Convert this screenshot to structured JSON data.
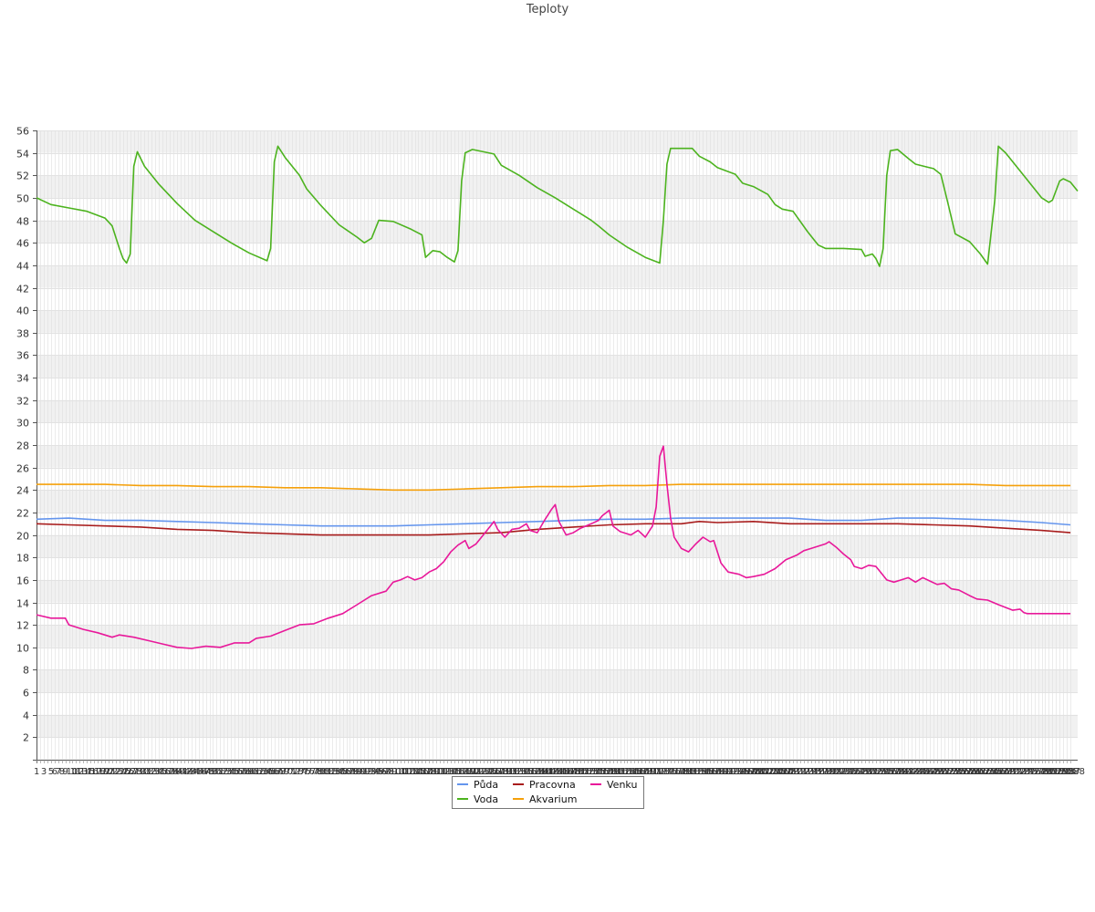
{
  "chart_data": {
    "type": "line",
    "title": "Teploty",
    "xlabel": "",
    "ylabel": "",
    "ylim": [
      0,
      56
    ],
    "yticks": [
      2,
      4,
      6,
      8,
      10,
      12,
      14,
      16,
      18,
      20,
      22,
      24,
      26,
      28,
      30,
      32,
      34,
      36,
      38,
      40,
      42,
      44,
      46,
      48,
      50,
      52,
      54,
      56
    ],
    "x_first_labels": [
      "1",
      "3",
      "5",
      "6",
      "7",
      "8",
      "9",
      "10",
      "11"
    ],
    "x_last_label": "288",
    "x_last_index": 288,
    "grid": true,
    "legend_position": "bottom-center",
    "series": [
      {
        "name": "Půda",
        "color": "#6495ED",
        "points": [
          [
            1,
            21.4
          ],
          [
            10,
            21.5
          ],
          [
            20,
            21.3
          ],
          [
            30,
            21.3
          ],
          [
            40,
            21.2
          ],
          [
            50,
            21.1
          ],
          [
            60,
            21.0
          ],
          [
            70,
            20.9
          ],
          [
            80,
            20.8
          ],
          [
            90,
            20.8
          ],
          [
            100,
            20.8
          ],
          [
            110,
            20.9
          ],
          [
            120,
            21.0
          ],
          [
            130,
            21.1
          ],
          [
            140,
            21.2
          ],
          [
            150,
            21.3
          ],
          [
            160,
            21.4
          ],
          [
            170,
            21.4
          ],
          [
            180,
            21.5
          ],
          [
            190,
            21.5
          ],
          [
            200,
            21.5
          ],
          [
            210,
            21.5
          ],
          [
            220,
            21.3
          ],
          [
            230,
            21.3
          ],
          [
            240,
            21.5
          ],
          [
            250,
            21.5
          ],
          [
            260,
            21.4
          ],
          [
            270,
            21.3
          ],
          [
            280,
            21.1
          ],
          [
            288,
            20.9
          ]
        ]
      },
      {
        "name": "Voda",
        "color": "#4CB31E",
        "points": [
          [
            1,
            50.0
          ],
          [
            5,
            49.4
          ],
          [
            10,
            49.1
          ],
          [
            15,
            48.8
          ],
          [
            20,
            48.2
          ],
          [
            22,
            47.5
          ],
          [
            24,
            45.5
          ],
          [
            25,
            44.6
          ],
          [
            26,
            44.2
          ],
          [
            27,
            45.0
          ],
          [
            28,
            52.8
          ],
          [
            29,
            54.1
          ],
          [
            31,
            52.8
          ],
          [
            35,
            51.2
          ],
          [
            40,
            49.5
          ],
          [
            45,
            48.0
          ],
          [
            50,
            47.0
          ],
          [
            55,
            46.0
          ],
          [
            60,
            45.1
          ],
          [
            65,
            44.4
          ],
          [
            66,
            45.5
          ],
          [
            67,
            53.2
          ],
          [
            68,
            54.6
          ],
          [
            70,
            53.6
          ],
          [
            74,
            52.0
          ],
          [
            76,
            50.8
          ],
          [
            80,
            49.3
          ],
          [
            85,
            47.6
          ],
          [
            90,
            46.5
          ],
          [
            92,
            46.0
          ],
          [
            94,
            46.4
          ],
          [
            96,
            48.0
          ],
          [
            100,
            47.9
          ],
          [
            105,
            47.2
          ],
          [
            108,
            46.7
          ],
          [
            109,
            44.7
          ],
          [
            111,
            45.3
          ],
          [
            113,
            45.2
          ],
          [
            115,
            44.7
          ],
          [
            117,
            44.3
          ],
          [
            118,
            45.3
          ],
          [
            119,
            51.5
          ],
          [
            120,
            54.0
          ],
          [
            122,
            54.3
          ],
          [
            125,
            54.1
          ],
          [
            128,
            53.9
          ],
          [
            130,
            52.9
          ],
          [
            135,
            52.0
          ],
          [
            140,
            50.9
          ],
          [
            145,
            50.0
          ],
          [
            150,
            49.0
          ],
          [
            155,
            48.0
          ],
          [
            157,
            47.5
          ],
          [
            160,
            46.7
          ],
          [
            165,
            45.6
          ],
          [
            170,
            44.7
          ],
          [
            174,
            44.2
          ],
          [
            175,
            48.0
          ],
          [
            176,
            53.0
          ],
          [
            177,
            54.4
          ],
          [
            183,
            54.4
          ],
          [
            185,
            53.7
          ],
          [
            188,
            53.2
          ],
          [
            190,
            52.7
          ],
          [
            195,
            52.1
          ],
          [
            197,
            51.3
          ],
          [
            200,
            51.0
          ],
          [
            204,
            50.3
          ],
          [
            206,
            49.4
          ],
          [
            208,
            49.0
          ],
          [
            211,
            48.8
          ],
          [
            215,
            47.0
          ],
          [
            218,
            45.8
          ],
          [
            220,
            45.5
          ],
          [
            225,
            45.5
          ],
          [
            230,
            45.4
          ],
          [
            231,
            44.8
          ],
          [
            233,
            45.0
          ],
          [
            234,
            44.6
          ],
          [
            235,
            43.9
          ],
          [
            236,
            45.5
          ],
          [
            237,
            52.0
          ],
          [
            238,
            54.2
          ],
          [
            240,
            54.3
          ],
          [
            243,
            53.5
          ],
          [
            245,
            53.0
          ],
          [
            250,
            52.6
          ],
          [
            252,
            52.1
          ],
          [
            254,
            49.5
          ],
          [
            256,
            46.8
          ],
          [
            260,
            46.1
          ],
          [
            263,
            45.0
          ],
          [
            265,
            44.1
          ],
          [
            267,
            49.8
          ],
          [
            268,
            54.6
          ],
          [
            270,
            54.0
          ],
          [
            275,
            52.0
          ],
          [
            280,
            50.0
          ],
          [
            282,
            49.6
          ],
          [
            283,
            49.8
          ],
          [
            285,
            51.5
          ],
          [
            286,
            51.7
          ],
          [
            288,
            51.4
          ],
          [
            290,
            50.6
          ]
        ]
      },
      {
        "name": "Pracovna",
        "color": "#A81C1C",
        "points": [
          [
            1,
            21.0
          ],
          [
            10,
            20.9
          ],
          [
            20,
            20.8
          ],
          [
            30,
            20.7
          ],
          [
            40,
            20.5
          ],
          [
            50,
            20.4
          ],
          [
            60,
            20.2
          ],
          [
            70,
            20.1
          ],
          [
            80,
            20.0
          ],
          [
            90,
            20.0
          ],
          [
            100,
            20.0
          ],
          [
            110,
            20.0
          ],
          [
            120,
            20.1
          ],
          [
            130,
            20.2
          ],
          [
            140,
            20.5
          ],
          [
            150,
            20.7
          ],
          [
            160,
            20.9
          ],
          [
            170,
            21.0
          ],
          [
            180,
            21.0
          ],
          [
            185,
            21.2
          ],
          [
            190,
            21.1
          ],
          [
            200,
            21.2
          ],
          [
            210,
            21.0
          ],
          [
            220,
            21.0
          ],
          [
            230,
            21.0
          ],
          [
            240,
            21.0
          ],
          [
            250,
            20.9
          ],
          [
            260,
            20.8
          ],
          [
            270,
            20.6
          ],
          [
            280,
            20.4
          ],
          [
            288,
            20.2
          ]
        ]
      },
      {
        "name": "Akvarium",
        "color": "#F5A00A",
        "points": [
          [
            1,
            24.5
          ],
          [
            20,
            24.5
          ],
          [
            30,
            24.4
          ],
          [
            40,
            24.4
          ],
          [
            50,
            24.3
          ],
          [
            60,
            24.3
          ],
          [
            70,
            24.2
          ],
          [
            80,
            24.2
          ],
          [
            90,
            24.1
          ],
          [
            100,
            24.0
          ],
          [
            110,
            24.0
          ],
          [
            120,
            24.1
          ],
          [
            130,
            24.2
          ],
          [
            140,
            24.3
          ],
          [
            150,
            24.3
          ],
          [
            160,
            24.4
          ],
          [
            170,
            24.4
          ],
          [
            180,
            24.5
          ],
          [
            190,
            24.5
          ],
          [
            200,
            24.5
          ],
          [
            210,
            24.5
          ],
          [
            220,
            24.5
          ],
          [
            230,
            24.5
          ],
          [
            240,
            24.5
          ],
          [
            250,
            24.5
          ],
          [
            260,
            24.5
          ],
          [
            270,
            24.4
          ],
          [
            280,
            24.4
          ],
          [
            288,
            24.4
          ]
        ]
      },
      {
        "name": "Venku",
        "color": "#E8189A",
        "points": [
          [
            1,
            12.9
          ],
          [
            5,
            12.6
          ],
          [
            9,
            12.6
          ],
          [
            10,
            12.0
          ],
          [
            14,
            11.6
          ],
          [
            18,
            11.3
          ],
          [
            22,
            10.9
          ],
          [
            24,
            11.1
          ],
          [
            28,
            10.9
          ],
          [
            32,
            10.6
          ],
          [
            36,
            10.3
          ],
          [
            40,
            10.0
          ],
          [
            44,
            9.9
          ],
          [
            48,
            10.1
          ],
          [
            52,
            10.0
          ],
          [
            56,
            10.4
          ],
          [
            60,
            10.4
          ],
          [
            62,
            10.8
          ],
          [
            66,
            11.0
          ],
          [
            70,
            11.5
          ],
          [
            74,
            12.0
          ],
          [
            78,
            12.1
          ],
          [
            82,
            12.6
          ],
          [
            86,
            13.0
          ],
          [
            90,
            13.8
          ],
          [
            94,
            14.6
          ],
          [
            98,
            15.0
          ],
          [
            100,
            15.8
          ],
          [
            102,
            16.0
          ],
          [
            104,
            16.3
          ],
          [
            106,
            16.0
          ],
          [
            108,
            16.2
          ],
          [
            110,
            16.7
          ],
          [
            112,
            17.0
          ],
          [
            114,
            17.6
          ],
          [
            116,
            18.5
          ],
          [
            118,
            19.1
          ],
          [
            120,
            19.5
          ],
          [
            121,
            18.8
          ],
          [
            123,
            19.2
          ],
          [
            125,
            20.0
          ],
          [
            127,
            20.8
          ],
          [
            128,
            21.2
          ],
          [
            129,
            20.5
          ],
          [
            131,
            19.8
          ],
          [
            133,
            20.5
          ],
          [
            135,
            20.6
          ],
          [
            137,
            21.0
          ],
          [
            138,
            20.4
          ],
          [
            140,
            20.2
          ],
          [
            142,
            21.3
          ],
          [
            144,
            22.3
          ],
          [
            145,
            22.7
          ],
          [
            146,
            21.2
          ],
          [
            148,
            20.0
          ],
          [
            150,
            20.2
          ],
          [
            152,
            20.6
          ],
          [
            155,
            21.0
          ],
          [
            157,
            21.3
          ],
          [
            158,
            21.7
          ],
          [
            160,
            22.2
          ],
          [
            161,
            20.8
          ],
          [
            163,
            20.3
          ],
          [
            166,
            20.0
          ],
          [
            168,
            20.4
          ],
          [
            170,
            19.8
          ],
          [
            172,
            20.8
          ],
          [
            173,
            22.5
          ],
          [
            174,
            27.0
          ],
          [
            175,
            27.9
          ],
          [
            176,
            24.5
          ],
          [
            177,
            21.5
          ],
          [
            178,
            19.8
          ],
          [
            180,
            18.8
          ],
          [
            182,
            18.5
          ],
          [
            184,
            19.2
          ],
          [
            186,
            19.8
          ],
          [
            188,
            19.4
          ],
          [
            189,
            19.5
          ],
          [
            190,
            18.5
          ],
          [
            191,
            17.5
          ],
          [
            193,
            16.7
          ],
          [
            196,
            16.5
          ],
          [
            198,
            16.2
          ],
          [
            200,
            16.3
          ],
          [
            203,
            16.5
          ],
          [
            206,
            17.0
          ],
          [
            209,
            17.8
          ],
          [
            212,
            18.2
          ],
          [
            214,
            18.6
          ],
          [
            216,
            18.8
          ],
          [
            218,
            19.0
          ],
          [
            220,
            19.2
          ],
          [
            221,
            19.4
          ],
          [
            223,
            18.9
          ],
          [
            225,
            18.3
          ],
          [
            227,
            17.8
          ],
          [
            228,
            17.2
          ],
          [
            230,
            17.0
          ],
          [
            232,
            17.3
          ],
          [
            234,
            17.2
          ],
          [
            235,
            16.8
          ],
          [
            237,
            16.0
          ],
          [
            239,
            15.8
          ],
          [
            241,
            16.0
          ],
          [
            243,
            16.2
          ],
          [
            245,
            15.8
          ],
          [
            247,
            16.2
          ],
          [
            249,
            15.9
          ],
          [
            251,
            15.6
          ],
          [
            253,
            15.7
          ],
          [
            255,
            15.2
          ],
          [
            257,
            15.1
          ],
          [
            260,
            14.6
          ],
          [
            262,
            14.3
          ],
          [
            265,
            14.2
          ],
          [
            268,
            13.8
          ],
          [
            272,
            13.3
          ],
          [
            274,
            13.4
          ],
          [
            275,
            13.1
          ],
          [
            276,
            13.0
          ],
          [
            288,
            13.0
          ]
        ]
      }
    ]
  }
}
